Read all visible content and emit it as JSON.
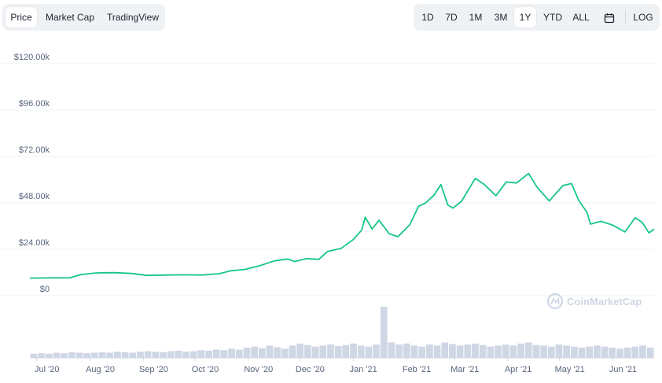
{
  "view_tabs": [
    {
      "label": "Price",
      "active": true
    },
    {
      "label": "Market Cap",
      "active": false
    },
    {
      "label": "TradingView",
      "active": false
    }
  ],
  "range_buttons": [
    {
      "label": "1D",
      "active": false
    },
    {
      "label": "7D",
      "active": false
    },
    {
      "label": "1M",
      "active": false
    },
    {
      "label": "3M",
      "active": false
    },
    {
      "label": "1Y",
      "active": true
    },
    {
      "label": "YTD",
      "active": false
    },
    {
      "label": "ALL",
      "active": false
    }
  ],
  "calendar_icon": "calendar-icon",
  "log_label": "LOG",
  "watermark": "CoinMarketCap",
  "colors": {
    "line": "#16c784",
    "grid": "#eff2f5",
    "volume": "#cfd6e4",
    "text": "#58667e"
  },
  "chart_data": {
    "type": "line",
    "title": "",
    "xlabel": "",
    "ylabel": "",
    "y_ticks": [
      "$0",
      "$24.00k",
      "$48.00k",
      "$72.00k",
      "$96.00k",
      "$120.00k"
    ],
    "ylim": [
      0,
      120000
    ],
    "x_ticks": [
      "Jul '20",
      "Aug '20",
      "Sep '20",
      "Oct '20",
      "Nov '20",
      "Dec '20",
      "Jan '21",
      "Feb '21",
      "Mar '21",
      "Apr '21",
      "May '21",
      "Jun '21"
    ],
    "x_range": [
      "2020-06-27",
      "2021-06-25"
    ],
    "grid": true,
    "series": [
      {
        "x": [
          "2020-06-27",
          "2020-07-10",
          "2020-07-20",
          "2020-07-27",
          "2020-08-05",
          "2020-08-15",
          "2020-08-25",
          "2020-09-03",
          "2020-09-15",
          "2020-09-25",
          "2020-10-05",
          "2020-10-15",
          "2020-10-22",
          "2020-10-30",
          "2020-11-08",
          "2020-11-16",
          "2020-11-24",
          "2020-11-28",
          "2020-12-05",
          "2020-12-12",
          "2020-12-17",
          "2020-12-25",
          "2021-01-01",
          "2021-01-06",
          "2021-01-08",
          "2021-01-12",
          "2021-01-16",
          "2021-01-22",
          "2021-01-27",
          "2021-02-03",
          "2021-02-08",
          "2021-02-12",
          "2021-02-17",
          "2021-02-21",
          "2021-02-25",
          "2021-02-28",
          "2021-03-05",
          "2021-03-13",
          "2021-03-18",
          "2021-03-25",
          "2021-03-31",
          "2021-04-06",
          "2021-04-13",
          "2021-04-18",
          "2021-04-25",
          "2021-05-03",
          "2021-05-08",
          "2021-05-12",
          "2021-05-17",
          "2021-05-19",
          "2021-05-25",
          "2021-06-01",
          "2021-06-08",
          "2021-06-14",
          "2021-06-18",
          "2021-06-22",
          "2021-06-25"
        ],
        "values": [
          9100,
          9250,
          9200,
          11000,
          11800,
          11900,
          11500,
          10500,
          10700,
          10800,
          10700,
          11400,
          12900,
          13600,
          15600,
          18000,
          19000,
          17700,
          19200,
          18800,
          22800,
          24500,
          29000,
          34000,
          40600,
          34500,
          39000,
          32000,
          30500,
          36800,
          46200,
          47900,
          52000,
          57500,
          47000,
          45300,
          48800,
          60700,
          57700,
          51700,
          58800,
          58300,
          63200,
          56000,
          49000,
          57000,
          58000,
          49500,
          43000,
          37000,
          38500,
          36500,
          33000,
          40300,
          38000,
          32500,
          34500
        ]
      }
    ],
    "volume_note": "bars",
    "volume_relative": [
      8,
      9,
      8,
      10,
      9,
      11,
      10,
      9,
      10,
      11,
      10,
      12,
      11,
      10,
      12,
      13,
      12,
      11,
      13,
      14,
      12,
      13,
      15,
      14,
      16,
      15,
      18,
      16,
      20,
      22,
      19,
      24,
      21,
      18,
      24,
      28,
      25,
      22,
      24,
      26,
      23,
      25,
      28,
      24,
      22,
      26,
      100,
      30,
      26,
      28,
      24,
      22,
      26,
      24,
      30,
      27,
      24,
      26,
      28,
      25,
      22,
      24,
      26,
      24,
      28,
      30,
      25,
      24,
      22,
      26,
      24,
      22,
      20,
      22,
      24,
      22,
      20,
      18,
      20,
      22,
      24,
      20
    ]
  }
}
